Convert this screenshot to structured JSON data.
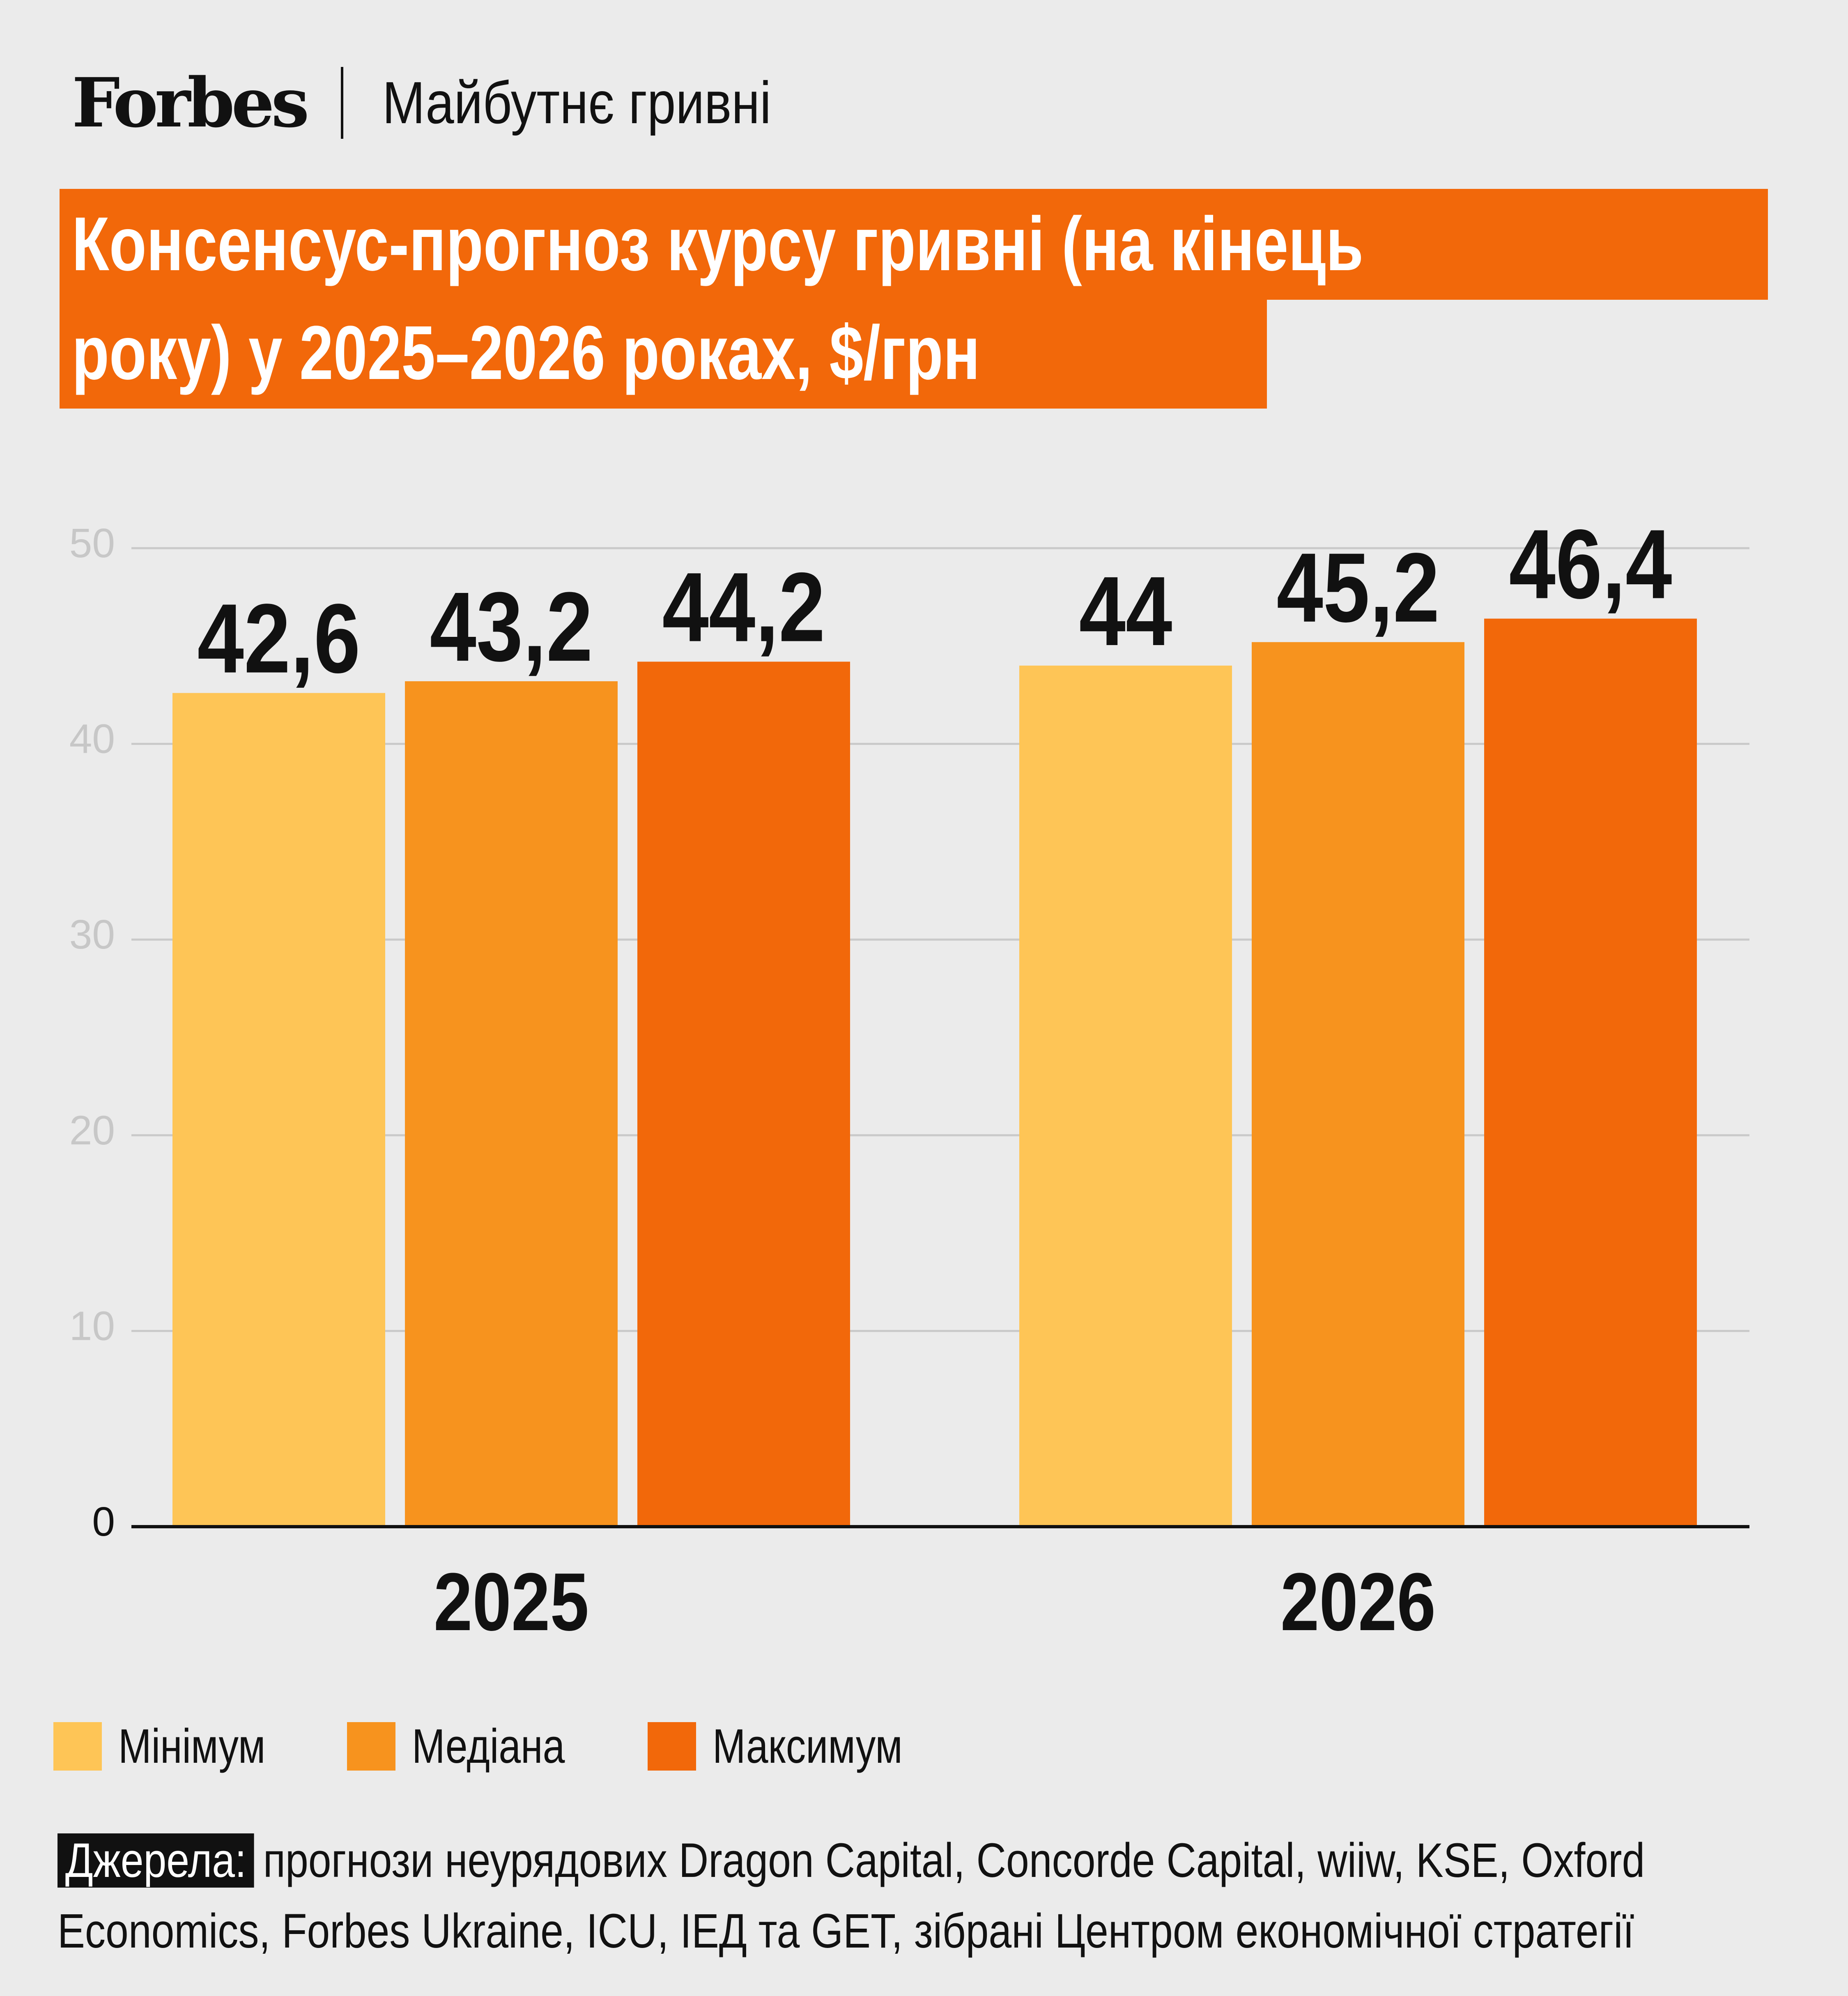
{
  "header": {
    "logo": "Forbes",
    "series_name": "Майбутнє гривні"
  },
  "title": {
    "line1": "Консенсус-прогноз курсу гривні (на кінець",
    "line2": "року) у 2025–2026 роках, $/грн"
  },
  "colors": {
    "background": "#ebebeb",
    "accent": "#f2680a",
    "min": "#fec556",
    "median": "#f7931e",
    "max": "#f2680a",
    "text": "#111111",
    "grid": "#c9c9c9",
    "tick": "#c7c7c7"
  },
  "chart_data": {
    "type": "bar",
    "title": "Консенсус-прогноз курсу гривні (на кінець року) у 2025–2026 роках, $/грн",
    "categories": [
      "2025",
      "2026"
    ],
    "series": [
      {
        "name": "Мінімум",
        "values": [
          42.6,
          44
        ],
        "labels": [
          "42,6",
          "44"
        ],
        "color": "#fec556"
      },
      {
        "name": "Медіана",
        "values": [
          43.2,
          45.2
        ],
        "labels": [
          "43,2",
          "45,2"
        ],
        "color": "#f7931e"
      },
      {
        "name": "Максимум",
        "values": [
          44.2,
          46.4
        ],
        "labels": [
          "44,2",
          "46,4"
        ],
        "color": "#f2680a"
      }
    ],
    "ylim": [
      0,
      50
    ],
    "yticks": [
      "0",
      "10",
      "20",
      "30",
      "40",
      "50"
    ],
    "grid": true,
    "legend_position": "bottom-left"
  },
  "legend": {
    "items": [
      {
        "label": "Мінімум",
        "color": "#fec556"
      },
      {
        "label": "Медіана",
        "color": "#f7931e"
      },
      {
        "label": "Максимум",
        "color": "#f2680a"
      }
    ]
  },
  "source": {
    "label": "Джерела:",
    "text": "прогнози неурядових Dragon Capital, Concorde Capital, wiiw, KSE, Oxford Economics, Forbes Ukraine, ICU, ІЕД та GET, зібрані Центром економічної стратегії"
  }
}
